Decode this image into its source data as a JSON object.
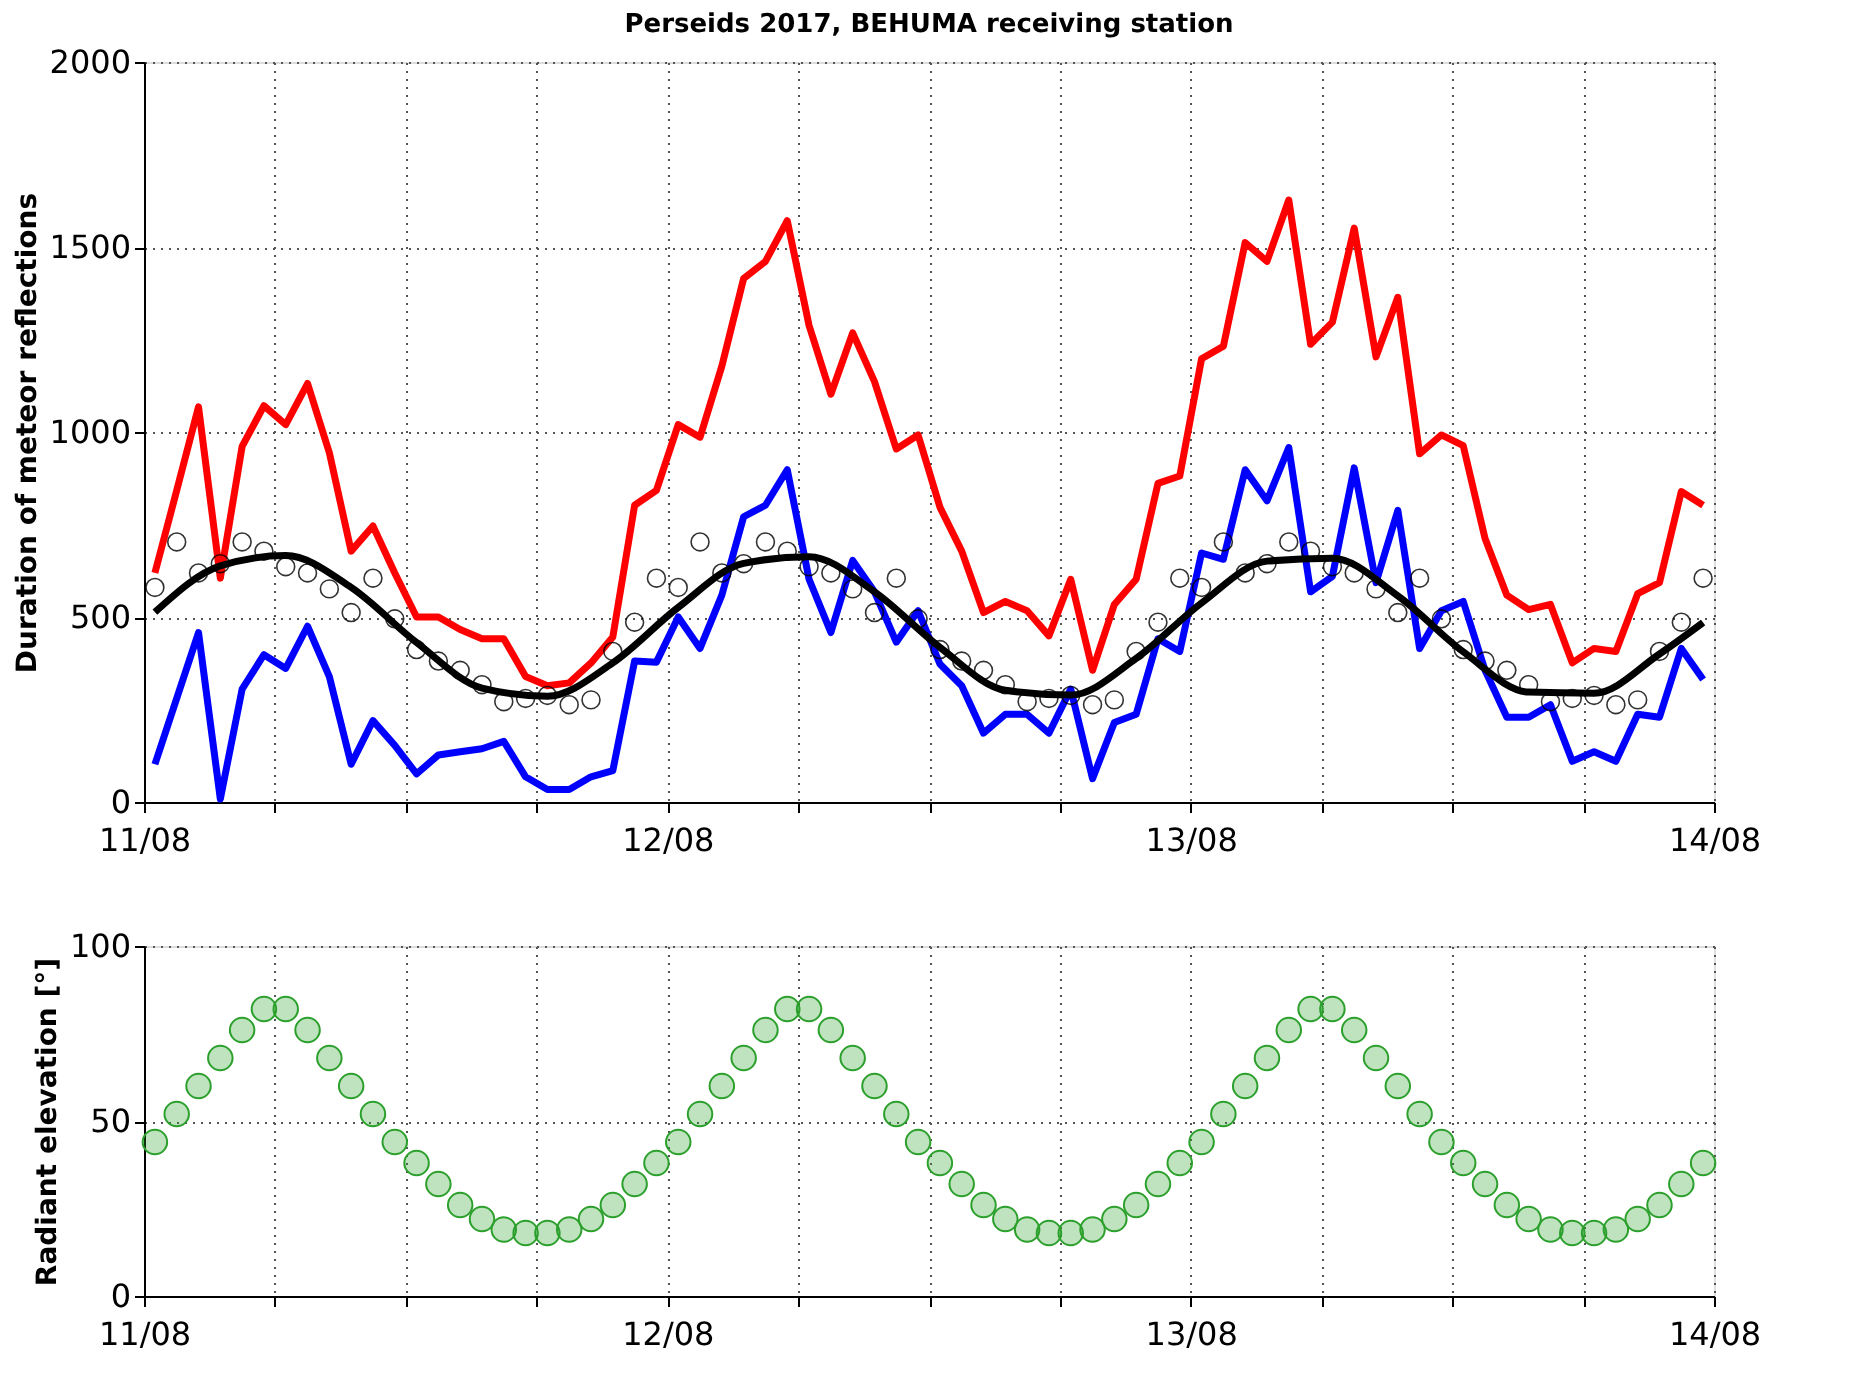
{
  "chart_data": [
    {
      "type": "line",
      "title": "Perseids 2017, BEHUMA receiving station",
      "ylabel": "Duration of meteor reflections",
      "xlim": [
        "2017-08-11T00:00",
        "2017-08-14T00:00"
      ],
      "xticks": [
        {
          "value": "2017-08-11T00:00",
          "label": "11/08"
        },
        {
          "value": "2017-08-11T06:00",
          "label": null
        },
        {
          "value": "2017-08-11T12:00",
          "label": null
        },
        {
          "value": "2017-08-11T18:00",
          "label": null
        },
        {
          "value": "2017-08-12T00:00",
          "label": "12/08"
        },
        {
          "value": "2017-08-12T06:00",
          "label": null
        },
        {
          "value": "2017-08-12T12:00",
          "label": null
        },
        {
          "value": "2017-08-12T18:00",
          "label": null
        },
        {
          "value": "2017-08-13T00:00",
          "label": "13/08"
        },
        {
          "value": "2017-08-13T06:00",
          "label": null
        },
        {
          "value": "2017-08-13T12:00",
          "label": null
        },
        {
          "value": "2017-08-13T18:00",
          "label": null
        },
        {
          "value": "2017-08-14T00:00",
          "label": "14/08"
        }
      ],
      "ylim": [
        0,
        2000
      ],
      "yticks": [
        0,
        500,
        1000,
        1500,
        2000
      ],
      "grid": true,
      "x": [
        "2017-08-11T00:30",
        "2017-08-11T01:30",
        "2017-08-11T02:30",
        "2017-08-11T03:30",
        "2017-08-11T04:30",
        "2017-08-11T05:30",
        "2017-08-11T06:30",
        "2017-08-11T07:30",
        "2017-08-11T08:30",
        "2017-08-11T09:30",
        "2017-08-11T10:30",
        "2017-08-11T11:30",
        "2017-08-11T12:30",
        "2017-08-11T13:30",
        "2017-08-11T14:30",
        "2017-08-11T15:30",
        "2017-08-11T16:30",
        "2017-08-11T17:30",
        "2017-08-11T18:30",
        "2017-08-11T19:30",
        "2017-08-11T20:30",
        "2017-08-11T21:30",
        "2017-08-11T22:30",
        "2017-08-11T23:30",
        "2017-08-12T00:30",
        "2017-08-12T01:30",
        "2017-08-12T02:30",
        "2017-08-12T03:30",
        "2017-08-12T04:30",
        "2017-08-12T05:30",
        "2017-08-12T06:30",
        "2017-08-12T07:30",
        "2017-08-12T08:30",
        "2017-08-12T09:30",
        "2017-08-12T10:30",
        "2017-08-12T11:30",
        "2017-08-12T12:30",
        "2017-08-12T13:30",
        "2017-08-12T14:30",
        "2017-08-12T15:30",
        "2017-08-12T16:30",
        "2017-08-12T17:30",
        "2017-08-12T18:30",
        "2017-08-12T19:30",
        "2017-08-12T20:30",
        "2017-08-12T21:30",
        "2017-08-12T22:30",
        "2017-08-12T23:30",
        "2017-08-13T00:30",
        "2017-08-13T01:30",
        "2017-08-13T02:30",
        "2017-08-13T03:30",
        "2017-08-13T04:30",
        "2017-08-13T05:30",
        "2017-08-13T06:30",
        "2017-08-13T07:30",
        "2017-08-13T08:30",
        "2017-08-13T09:30",
        "2017-08-13T10:30",
        "2017-08-13T11:30",
        "2017-08-13T12:30",
        "2017-08-13T13:30",
        "2017-08-13T14:30",
        "2017-08-13T15:30",
        "2017-08-13T16:30",
        "2017-08-13T17:30",
        "2017-08-13T18:30",
        "2017-08-13T19:30",
        "2017-08-13T20:30",
        "2017-08-13T21:30",
        "2017-08-13T22:30",
        "2017-08-13T23:30"
      ],
      "series": [
        {
          "type": "line",
          "color": "#ff0000",
          "values": [
            619,
            842,
            1068,
            605,
            961,
            1071,
            1020,
            1131,
            944,
            678,
            746,
            619,
            500,
            500,
            466,
            441,
            441,
            339,
            314,
            322,
            376,
            446,
            802,
            842,
            1020,
            986,
            1178,
            1415,
            1461,
            1571,
            1288,
            1102,
            1268,
            1136,
            954,
            992,
            797,
            678,
            512,
            542,
            517,
            449,
            602,
            356,
            534,
            602,
            861,
            881,
            1198,
            1232,
            1512,
            1461,
            1627,
            1237,
            1297,
            1551,
            1203,
            1364,
            941,
            992,
            963,
            712,
            559,
            520,
            534,
            376,
            415,
            407,
            563,
            593,
            839,
            802
          ]
        },
        {
          "type": "line",
          "color": "#0000ff",
          "values": [
            102,
            280,
            458,
            8,
            305,
            398,
            361,
            475,
            339,
            102,
            220,
            153,
            76,
            127,
            136,
            144,
            164,
            68,
            34,
            34,
            68,
            85,
            381,
            378,
            500,
            415,
            559,
            771,
            802,
            898,
            602,
            458,
            653,
            568,
            432,
            517,
            373,
            314,
            186,
            237,
            237,
            186,
            305,
            63,
            215,
            237,
            441,
            407,
            673,
            656,
            898,
            814,
            958,
            568,
            610,
            903,
            593,
            788,
            415,
            517,
            542,
            356,
            229,
            229,
            263,
            110,
            136,
            110,
            237,
            229,
            415,
            331
          ]
        },
        {
          "type": "scatter",
          "color": "#000000",
          "marker": "circle",
          "values": [
            580,
            703,
            619,
            644,
            703,
            678,
            636,
            619,
            576,
            512,
            605,
            495,
            412,
            381,
            356,
            317,
            271,
            280,
            288,
            263,
            276,
            407,
            486,
            605,
            580,
            703,
            619,
            644,
            703,
            678,
            636,
            619,
            576,
            512,
            605,
            495,
            412,
            381,
            356,
            317,
            271,
            280,
            288,
            263,
            276,
            407,
            486,
            605,
            580,
            703,
            619,
            644,
            703,
            678,
            636,
            619,
            576,
            512,
            605,
            495,
            412,
            381,
            356,
            317,
            271,
            280,
            288,
            263,
            276,
            407,
            486,
            605
          ]
        },
        {
          "type": "line",
          "color": "#000000",
          "x": [
            "2017-08-11T00:30",
            "2017-08-11T03:30",
            "2017-08-11T06:30",
            "2017-08-11T09:30",
            "2017-08-11T12:30",
            "2017-08-11T15:30",
            "2017-08-11T18:30",
            "2017-08-11T21:30",
            "2017-08-12T00:30",
            "2017-08-12T03:30",
            "2017-08-12T06:30",
            "2017-08-12T09:30",
            "2017-08-12T12:30",
            "2017-08-12T15:30",
            "2017-08-12T18:30",
            "2017-08-12T21:30",
            "2017-08-13T00:30",
            "2017-08-13T03:30",
            "2017-08-13T06:30",
            "2017-08-13T09:30",
            "2017-08-13T12:30",
            "2017-08-13T15:30",
            "2017-08-13T18:30",
            "2017-08-13T21:30",
            "2017-08-13T23:30"
          ],
          "values": [
            513,
            638,
            666,
            580,
            431,
            308,
            286,
            376,
            526,
            645,
            663,
            568,
            418,
            302,
            289,
            388,
            538,
            651,
            659,
            557,
            406,
            297,
            294,
            400,
            485
          ]
        }
      ]
    },
    {
      "type": "scatter",
      "ylabel": "Radiant elevation [°]",
      "marker": "circle",
      "xlim": [
        "2017-08-11T00:00",
        "2017-08-14T00:00"
      ],
      "xticks": [
        {
          "value": "2017-08-11T00:00",
          "label": "11/08"
        },
        {
          "value": "2017-08-11T06:00",
          "label": null
        },
        {
          "value": "2017-08-11T12:00",
          "label": null
        },
        {
          "value": "2017-08-11T18:00",
          "label": null
        },
        {
          "value": "2017-08-12T00:00",
          "label": "12/08"
        },
        {
          "value": "2017-08-12T06:00",
          "label": null
        },
        {
          "value": "2017-08-12T12:00",
          "label": null
        },
        {
          "value": "2017-08-12T18:00",
          "label": null
        },
        {
          "value": "2017-08-13T00:00",
          "label": "13/08"
        },
        {
          "value": "2017-08-13T06:00",
          "label": null
        },
        {
          "value": "2017-08-13T12:00",
          "label": null
        },
        {
          "value": "2017-08-13T18:00",
          "label": null
        },
        {
          "value": "2017-08-14T00:00",
          "label": "14/08"
        }
      ],
      "ylim": [
        0,
        100
      ],
      "yticks": [
        0,
        50,
        100
      ],
      "grid": true,
      "x": [
        "2017-08-11T00:30",
        "2017-08-11T01:30",
        "2017-08-11T02:30",
        "2017-08-11T03:30",
        "2017-08-11T04:30",
        "2017-08-11T05:30",
        "2017-08-11T06:30",
        "2017-08-11T07:30",
        "2017-08-11T08:30",
        "2017-08-11T09:30",
        "2017-08-11T10:30",
        "2017-08-11T11:30",
        "2017-08-11T12:30",
        "2017-08-11T13:30",
        "2017-08-11T14:30",
        "2017-08-11T15:30",
        "2017-08-11T16:30",
        "2017-08-11T17:30",
        "2017-08-11T18:30",
        "2017-08-11T19:30",
        "2017-08-11T20:30",
        "2017-08-11T21:30",
        "2017-08-11T22:30",
        "2017-08-11T23:30",
        "2017-08-12T00:30",
        "2017-08-12T01:30",
        "2017-08-12T02:30",
        "2017-08-12T03:30",
        "2017-08-12T04:30",
        "2017-08-12T05:30",
        "2017-08-12T06:30",
        "2017-08-12T07:30",
        "2017-08-12T08:30",
        "2017-08-12T09:30",
        "2017-08-12T10:30",
        "2017-08-12T11:30",
        "2017-08-12T12:30",
        "2017-08-12T13:30",
        "2017-08-12T14:30",
        "2017-08-12T15:30",
        "2017-08-12T16:30",
        "2017-08-12T17:30",
        "2017-08-12T18:30",
        "2017-08-12T19:30",
        "2017-08-12T20:30",
        "2017-08-12T21:30",
        "2017-08-12T22:30",
        "2017-08-12T23:30",
        "2017-08-13T00:30",
        "2017-08-13T01:30",
        "2017-08-13T02:30",
        "2017-08-13T03:30",
        "2017-08-13T04:30",
        "2017-08-13T05:30",
        "2017-08-13T06:30",
        "2017-08-13T07:30",
        "2017-08-13T08:30",
        "2017-08-13T09:30",
        "2017-08-13T10:30",
        "2017-08-13T11:30",
        "2017-08-13T12:30",
        "2017-08-13T13:30",
        "2017-08-13T14:30",
        "2017-08-13T15:30",
        "2017-08-13T16:30",
        "2017-08-13T17:30",
        "2017-08-13T18:30",
        "2017-08-13T19:30",
        "2017-08-13T20:30",
        "2017-08-13T21:30",
        "2017-08-13T22:30",
        "2017-08-13T23:30"
      ],
      "series": [
        {
          "color": "#2ca02c",
          "values": [
            44,
            52,
            60,
            68,
            76,
            82,
            82,
            76,
            68,
            60,
            52,
            44,
            38,
            32,
            26,
            22,
            19,
            18,
            18,
            19,
            22,
            26,
            32,
            38,
            44,
            52,
            60,
            68,
            76,
            82,
            82,
            76,
            68,
            60,
            52,
            44,
            38,
            32,
            26,
            22,
            19,
            18,
            18,
            19,
            22,
            26,
            32,
            38,
            44,
            52,
            60,
            68,
            76,
            82,
            82,
            76,
            68,
            60,
            52,
            44,
            38,
            32,
            26,
            22,
            19,
            18,
            18,
            19,
            22,
            26,
            32,
            38
          ]
        }
      ]
    }
  ]
}
